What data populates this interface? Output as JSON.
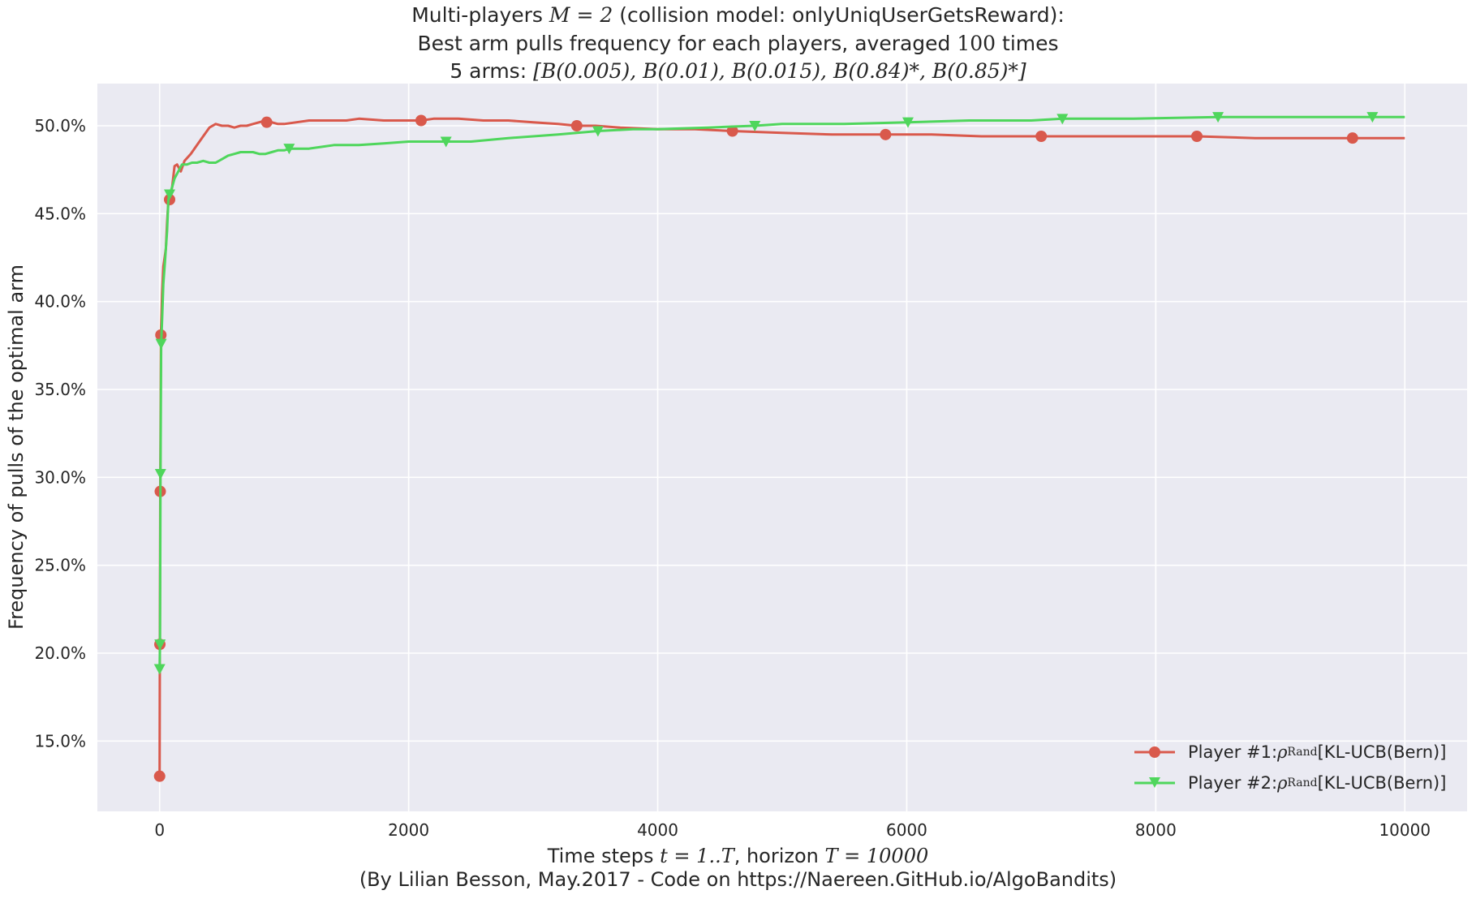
{
  "chart_data": {
    "type": "line",
    "title": {
      "line1": {
        "pre": "Multi-players ",
        "math": "M = 2",
        "post": " (collision model: onlyUniqUserGetsReward):"
      },
      "line2": {
        "pre": "Best arm pulls frequency for each players, averaged ",
        "math": "100",
        "post": " times"
      },
      "line3": {
        "pre": "5 arms: ",
        "math": "[B(0.005), B(0.01), B(0.015), B(0.84)*, B(0.85)*]"
      }
    },
    "xlabel": {
      "pre": "Time steps ",
      "math1": "t = 1..T",
      "mid": ", horizon ",
      "math2": "T = 10000"
    },
    "caption": "(By Lilian Besson, May.2017 - Code on https://Naereen.GitHub.io/AlgoBandits)",
    "ylabel": "Frequency of pulls of the optimal arm",
    "xlim": [
      -500,
      10500
    ],
    "ylim": [
      0.11,
      0.524
    ],
    "x_ticks": [
      0,
      2000,
      4000,
      6000,
      8000,
      10000
    ],
    "x_tick_labels": [
      "0",
      "2000",
      "4000",
      "6000",
      "8000",
      "10000"
    ],
    "y_ticks": [
      0.15,
      0.2,
      0.25,
      0.3,
      0.35,
      0.4,
      0.45,
      0.5
    ],
    "y_tick_labels": [
      "15.0%",
      "20.0%",
      "25.0%",
      "30.0%",
      "35.0%",
      "40.0%",
      "45.0%",
      "50.0%"
    ],
    "grid": true,
    "legend_position": "lower-right",
    "series": [
      {
        "name": "Player #1: ρ^Rand[KL-UCB(Bern)]",
        "legend_pre": "Player #1: ",
        "legend_math": "ρ",
        "legend_sup": "Rand",
        "legend_post": "[KL-UCB(Bern)]",
        "color": "#d9594c",
        "marker": "circle",
        "x": [
          0,
          2,
          5,
          10,
          20,
          30,
          40,
          50,
          60,
          70,
          80,
          100,
          120,
          140,
          170,
          200,
          250,
          300,
          350,
          400,
          450,
          500,
          550,
          600,
          650,
          700,
          750,
          800,
          850,
          900,
          950,
          1000,
          1100,
          1200,
          1300,
          1400,
          1500,
          1600,
          1800,
          2000,
          2100,
          2200,
          2400,
          2600,
          2800,
          3000,
          3200,
          3350,
          3500,
          3700,
          4000,
          4300,
          4600,
          5000,
          5400,
          5830,
          6200,
          6600,
          7080,
          7500,
          8000,
          8330,
          8800,
          9200,
          9580,
          10000
        ],
        "y": [
          0.13,
          0.205,
          0.292,
          0.381,
          0.405,
          0.42,
          0.425,
          0.43,
          0.445,
          0.457,
          0.458,
          0.465,
          0.477,
          0.478,
          0.474,
          0.48,
          0.484,
          0.489,
          0.494,
          0.499,
          0.501,
          0.5,
          0.5,
          0.499,
          0.5,
          0.5,
          0.501,
          0.502,
          0.503,
          0.502,
          0.501,
          0.501,
          0.502,
          0.503,
          0.503,
          0.503,
          0.503,
          0.504,
          0.503,
          0.503,
          0.503,
          0.504,
          0.504,
          0.503,
          0.503,
          0.502,
          0.501,
          0.5,
          0.5,
          0.499,
          0.498,
          0.498,
          0.497,
          0.496,
          0.495,
          0.495,
          0.495,
          0.494,
          0.494,
          0.494,
          0.494,
          0.494,
          0.493,
          0.493,
          0.493,
          0.493
        ],
        "marker_x": [
          0,
          2,
          5,
          10,
          80,
          860,
          2100,
          3350,
          4600,
          5830,
          7080,
          8330,
          9580
        ],
        "marker_y": [
          0.13,
          0.205,
          0.292,
          0.381,
          0.458,
          0.502,
          0.503,
          0.5,
          0.497,
          0.495,
          0.494,
          0.494,
          0.493
        ]
      },
      {
        "name": "Player #2: ρ^Rand[KL-UCB(Bern)]",
        "legend_pre": "Player #2: ",
        "legend_math": "ρ",
        "legend_sup": "Rand",
        "legend_post": "[KL-UCB(Bern)]",
        "color": "#4fd65c",
        "marker": "triangle-down",
        "x": [
          0,
          3,
          7,
          12,
          20,
          30,
          40,
          50,
          60,
          70,
          80,
          100,
          120,
          150,
          180,
          220,
          260,
          300,
          350,
          400,
          450,
          500,
          550,
          600,
          650,
          700,
          750,
          800,
          850,
          900,
          950,
          1000,
          1050,
          1100,
          1200,
          1300,
          1400,
          1500,
          1600,
          1800,
          2000,
          2300,
          2500,
          2800,
          3200,
          3520,
          3800,
          4000,
          4400,
          4780,
          5000,
          5500,
          6010,
          6500,
          7000,
          7250,
          7800,
          8500,
          9000,
          9740,
          10000
        ],
        "y": [
          0.191,
          0.205,
          0.302,
          0.376,
          0.39,
          0.41,
          0.42,
          0.43,
          0.44,
          0.458,
          0.461,
          0.465,
          0.47,
          0.474,
          0.478,
          0.478,
          0.479,
          0.479,
          0.48,
          0.479,
          0.479,
          0.481,
          0.483,
          0.484,
          0.485,
          0.485,
          0.485,
          0.484,
          0.484,
          0.485,
          0.486,
          0.486,
          0.487,
          0.487,
          0.487,
          0.488,
          0.489,
          0.489,
          0.489,
          0.49,
          0.491,
          0.491,
          0.491,
          0.493,
          0.495,
          0.497,
          0.498,
          0.498,
          0.499,
          0.5,
          0.501,
          0.501,
          0.502,
          0.503,
          0.503,
          0.504,
          0.504,
          0.505,
          0.505,
          0.505,
          0.505
        ],
        "marker_x": [
          0,
          3,
          7,
          12,
          80,
          1040,
          2300,
          3520,
          4780,
          6010,
          7250,
          8500,
          9740
        ],
        "marker_y": [
          0.191,
          0.205,
          0.302,
          0.376,
          0.461,
          0.487,
          0.491,
          0.497,
          0.5,
          0.502,
          0.504,
          0.505,
          0.505
        ]
      }
    ]
  }
}
